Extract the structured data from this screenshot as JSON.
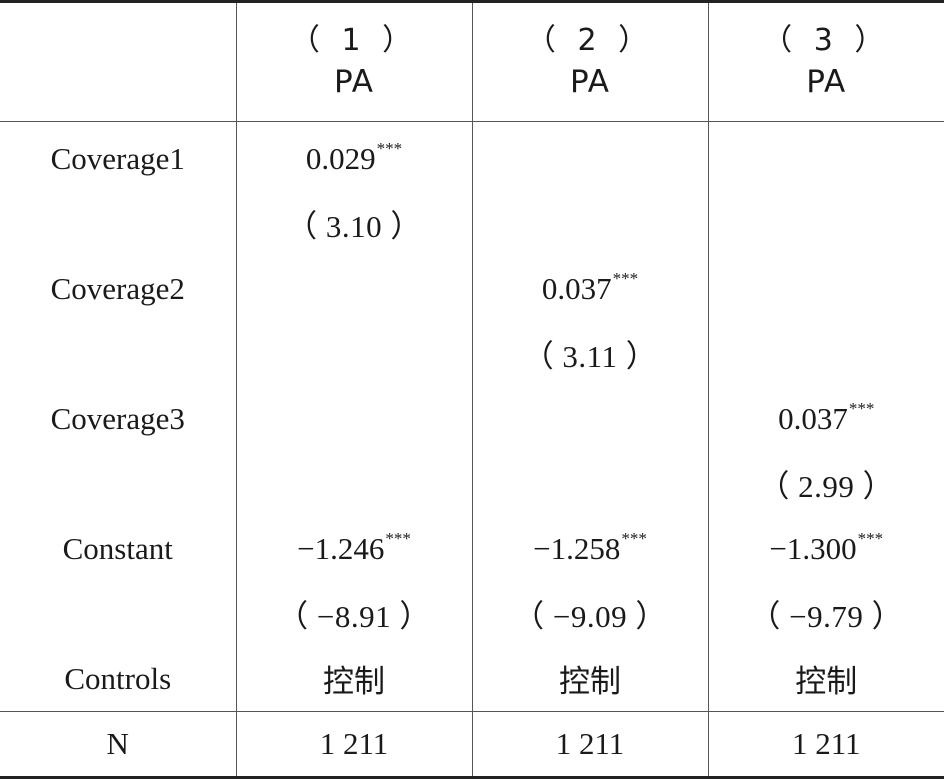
{
  "table": {
    "columns": [
      {
        "number": "（ 1 ）",
        "dep_var": "PA"
      },
      {
        "number": "（ 2 ）",
        "dep_var": "PA"
      },
      {
        "number": "（ 3 ）",
        "dep_var": "PA"
      }
    ],
    "rows": {
      "coverage1": {
        "label": "Coverage1",
        "coef": [
          "0.029",
          "",
          ""
        ],
        "stars": [
          "***",
          "",
          ""
        ],
        "tstat": [
          "（ 3.10 ）",
          "",
          ""
        ]
      },
      "coverage2": {
        "label": "Coverage2",
        "coef": [
          "",
          "0.037",
          ""
        ],
        "stars": [
          "",
          "***",
          ""
        ],
        "tstat": [
          "",
          "（ 3.11 ）",
          ""
        ]
      },
      "coverage3": {
        "label": "Coverage3",
        "coef": [
          "",
          "",
          "0.037"
        ],
        "stars": [
          "",
          "",
          "***"
        ],
        "tstat": [
          "",
          "",
          "（ 2.99 ）"
        ]
      },
      "constant": {
        "label": "Constant",
        "coef": [
          "−1.246",
          "−1.258",
          "−1.300"
        ],
        "stars": [
          "***",
          "***",
          "***"
        ],
        "tstat": [
          "（ −8.91 ）",
          "（ −9.09 ）",
          "（ −9.79 ）"
        ]
      },
      "controls": {
        "label": "Controls",
        "values": [
          "控制",
          "控制",
          "控制"
        ]
      },
      "n": {
        "label": "N",
        "values": [
          "1 211",
          "1 211",
          "1 211"
        ]
      }
    }
  }
}
